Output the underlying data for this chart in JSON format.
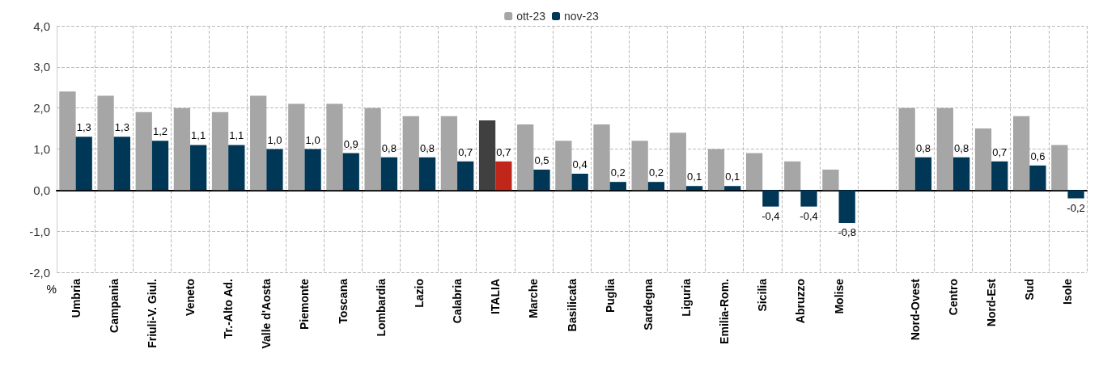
{
  "chart_data": {
    "type": "bar",
    "ylabel": "%",
    "categories": [
      "Umbria",
      "Campania",
      "Friuli-V. Giul.",
      "Veneto",
      "Tr.-Alto Ad.",
      "Valle d'Aosta",
      "Piemonte",
      "Toscana",
      "Lombardia",
      "Lazio",
      "Calabria",
      "ITALIA",
      "Marche",
      "Basilicata",
      "Puglia",
      "Sardegna",
      "Liguria",
      "Emilia-Rom.",
      "Sicilia",
      "Abruzzo",
      "Molise",
      null,
      "Nord-Ovest",
      "Centro",
      "Nord-Est",
      "Sud",
      "Isole"
    ],
    "series": [
      {
        "name": "ott-23",
        "color": "#a6a6a6",
        "colors": [
          "#a6a6a6",
          "#a6a6a6",
          "#a6a6a6",
          "#a6a6a6",
          "#a6a6a6",
          "#a6a6a6",
          "#a6a6a6",
          "#a6a6a6",
          "#a6a6a6",
          "#a6a6a6",
          "#a6a6a6",
          "#404040",
          "#a6a6a6",
          "#a6a6a6",
          "#a6a6a6",
          "#a6a6a6",
          "#a6a6a6",
          "#a6a6a6",
          "#a6a6a6",
          "#a6a6a6",
          "#a6a6a6",
          "#a6a6a6",
          "#a6a6a6",
          "#a6a6a6",
          "#a6a6a6",
          "#a6a6a6",
          "#a6a6a6"
        ],
        "values": [
          2.4,
          2.3,
          1.9,
          2.0,
          1.9,
          2.3,
          2.1,
          2.1,
          2.0,
          1.8,
          1.8,
          1.7,
          1.6,
          1.2,
          1.6,
          1.2,
          1.4,
          1.0,
          0.9,
          0.7,
          0.5,
          null,
          2.0,
          2.0,
          1.5,
          1.8,
          1.1
        ]
      },
      {
        "name": "nov-23",
        "color": "#003756",
        "colors": [
          "#003756",
          "#003756",
          "#003756",
          "#003756",
          "#003756",
          "#003756",
          "#003756",
          "#003756",
          "#003756",
          "#003756",
          "#003756",
          "#c0261a",
          "#003756",
          "#003756",
          "#003756",
          "#003756",
          "#003756",
          "#003756",
          "#003756",
          "#003756",
          "#003756",
          "#003756",
          "#003756",
          "#003756",
          "#003756",
          "#003756",
          "#003756"
        ],
        "values": [
          1.3,
          1.3,
          1.2,
          1.1,
          1.1,
          1.0,
          1.0,
          0.9,
          0.8,
          0.8,
          0.7,
          0.7,
          0.5,
          0.4,
          0.2,
          0.2,
          0.1,
          0.1,
          -0.4,
          -0.4,
          -0.8,
          null,
          0.8,
          0.8,
          0.7,
          0.6,
          -0.2
        ],
        "value_labels": [
          "1,3",
          "1,3",
          "1,2",
          "1,1",
          "1,1",
          "1,0",
          "1,0",
          "0,9",
          "0,8",
          "0,8",
          "0,7",
          "0,7",
          "0,5",
          "0,4",
          "0,2",
          "0,2",
          "0,1",
          "0,1",
          "-0,4",
          "-0,4",
          "-0,8",
          null,
          "0,8",
          "0,8",
          "0,7",
          "0,6",
          "-0,2"
        ]
      }
    ],
    "ylim": [
      -2,
      4
    ],
    "yticks": [
      {
        "value": -2,
        "label": "-2,0"
      },
      {
        "value": -1,
        "label": "-1,0"
      },
      {
        "value": 0,
        "label": "0,0"
      },
      {
        "value": 1,
        "label": "1,0"
      },
      {
        "value": 2,
        "label": "2,0"
      },
      {
        "value": 3,
        "label": "3,0"
      },
      {
        "value": 4,
        "label": "4,0"
      }
    ],
    "grid": true,
    "legend": "top"
  }
}
